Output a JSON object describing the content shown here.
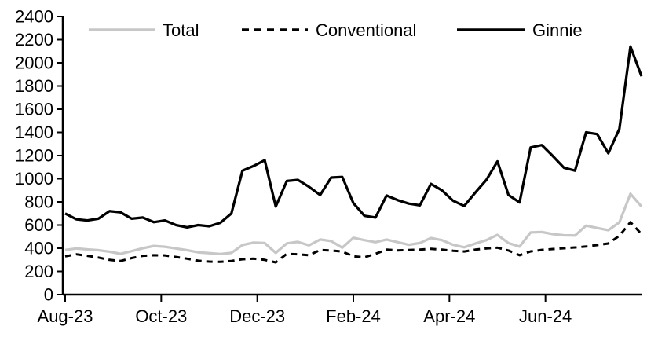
{
  "figure": {
    "background": "#ffffff",
    "plot_border": "none"
  },
  "chart_data": {
    "type": "line",
    "title": "",
    "xlabel": "",
    "ylabel": "",
    "x_unit": "weekly observations from Aug-2023 to Aug-2024",
    "grid": false,
    "legend_position": "top",
    "y_axis": {
      "min": 0,
      "max": 2400,
      "tick_step": 200,
      "tick_labels": [
        "0",
        "200",
        "400",
        "600",
        "800",
        "1000",
        "1200",
        "1400",
        "1600",
        "1800",
        "2000",
        "2200",
        "2400"
      ]
    },
    "x_axis": {
      "tick_labels": [
        "Aug-23",
        "Oct-23",
        "Dec-23",
        "Feb-24",
        "Apr-24",
        "Jun-24"
      ],
      "tick_month_offsets": [
        0,
        2,
        4,
        6,
        8,
        10
      ],
      "months_spanned": 12
    },
    "series": [
      {
        "name": "Total",
        "color": "#c7c7c7",
        "line_style": "solid",
        "values": [
          385,
          398,
          390,
          383,
          370,
          352,
          375,
          400,
          420,
          413,
          398,
          383,
          365,
          358,
          350,
          360,
          428,
          448,
          445,
          360,
          442,
          455,
          425,
          475,
          462,
          405,
          490,
          470,
          452,
          475,
          452,
          430,
          445,
          488,
          470,
          430,
          408,
          440,
          470,
          515,
          445,
          414,
          536,
          540,
          522,
          512,
          510,
          595,
          575,
          556,
          624,
          870,
          760
        ]
      },
      {
        "name": "Conventional",
        "color": "#000000",
        "line_style": "dashed",
        "values": [
          330,
          348,
          335,
          320,
          300,
          290,
          315,
          335,
          340,
          338,
          325,
          310,
          292,
          285,
          283,
          290,
          305,
          310,
          300,
          278,
          352,
          348,
          340,
          385,
          380,
          372,
          330,
          322,
          352,
          388,
          382,
          385,
          388,
          395,
          388,
          378,
          372,
          388,
          398,
          405,
          380,
          340,
          373,
          386,
          393,
          400,
          407,
          415,
          427,
          441,
          508,
          625,
          522
        ]
      },
      {
        "name": "Ginnie",
        "color": "#000000",
        "line_style": "solid",
        "values": [
          700,
          650,
          640,
          655,
          720,
          710,
          655,
          665,
          625,
          640,
          600,
          580,
          600,
          590,
          620,
          700,
          1070,
          1110,
          1160,
          760,
          980,
          990,
          930,
          860,
          1010,
          1015,
          790,
          680,
          665,
          855,
          815,
          785,
          770,
          955,
          900,
          810,
          765,
          880,
          990,
          1150,
          860,
          795,
          1270,
          1290,
          1195,
          1095,
          1070,
          1400,
          1385,
          1220,
          1430,
          2140,
          1885
        ]
      }
    ]
  }
}
